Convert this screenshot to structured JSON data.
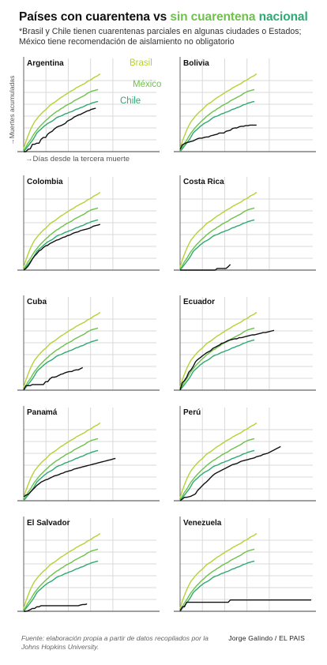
{
  "header": {
    "title_part1": "Países con cuarentena vs ",
    "title_part2": "sin cuarentena",
    "title_part3": " nacional",
    "subtitle": "*Brasil y Chile tienen cuarentenas parciales en algunas ciudades o Estados; México tiene recomendación de aislamiento no obligatorio"
  },
  "colors": {
    "brasil": "#b4d235",
    "mexico": "#6dc24b",
    "chile": "#2eaa72",
    "country": "#111111",
    "grid": "#d9d9d9",
    "axis": "#666666"
  },
  "chart_data": {
    "type": "line",
    "layout": "small-multiples",
    "xlabel": "Días desde la tercera muerte",
    "ylabel": "Muertes acumuladas",
    "grid": true,
    "reference_series": [
      {
        "name": "Brasil",
        "x": [
          0,
          1,
          2,
          3,
          4,
          5,
          6,
          7,
          8,
          9,
          10,
          11,
          12,
          13,
          14,
          15,
          16,
          17,
          18,
          19,
          20,
          21,
          22,
          23,
          24,
          25,
          26,
          27,
          28,
          29,
          30,
          31,
          32,
          33,
          34,
          35
        ],
        "values": [
          5,
          18,
          28,
          38,
          46,
          53,
          58,
          63,
          67,
          71,
          74,
          78,
          82,
          85,
          87,
          90,
          93,
          96,
          98,
          101,
          103,
          106,
          108,
          110,
          113,
          115,
          117,
          119,
          121,
          124,
          126,
          128,
          131,
          133,
          135,
          138
        ]
      },
      {
        "name": "México",
        "x": [
          0,
          1,
          2,
          3,
          4,
          5,
          6,
          7,
          8,
          9,
          10,
          11,
          12,
          13,
          14,
          15,
          16,
          17,
          18,
          19,
          20,
          21,
          22,
          23,
          24,
          25,
          26,
          27,
          28,
          29,
          30,
          31,
          32,
          33,
          34
        ],
        "values": [
          0,
          8,
          15,
          20,
          27,
          33,
          38,
          43,
          47,
          51,
          55,
          58,
          62,
          65,
          68,
          71,
          73,
          76,
          78,
          81,
          83,
          85,
          87,
          90,
          92,
          94,
          96,
          98,
          100,
          103,
          105,
          107,
          108,
          109,
          110
        ]
      },
      {
        "name": "Chile",
        "x": [
          0,
          1,
          2,
          3,
          4,
          5,
          6,
          7,
          8,
          9,
          10,
          11,
          12,
          13,
          14,
          15,
          16,
          17,
          18,
          19,
          20,
          21,
          22,
          23,
          24,
          25,
          26,
          27,
          28,
          29,
          30,
          31,
          32,
          33,
          34
        ],
        "values": [
          0,
          5,
          10,
          15,
          20,
          26,
          33,
          37,
          40,
          44,
          47,
          50,
          52,
          54,
          57,
          60,
          62,
          63,
          65,
          67,
          68,
          70,
          71,
          73,
          75,
          76,
          78,
          79,
          81,
          83,
          84,
          86,
          87,
          88,
          89
        ]
      }
    ],
    "panels": [
      {
        "country": "Argentina",
        "x": [
          0,
          1,
          2,
          3,
          4,
          5,
          6,
          7,
          8,
          9,
          10,
          11,
          12,
          13,
          14,
          15,
          16,
          17,
          18,
          19,
          20,
          21,
          22,
          23,
          24,
          25,
          26,
          27,
          28,
          29,
          30,
          31,
          32,
          33
        ],
        "values": [
          0,
          0,
          4,
          5,
          13,
          13,
          15,
          15,
          22,
          25,
          25,
          31,
          34,
          36,
          40,
          43,
          45,
          46,
          48,
          50,
          54,
          56,
          58,
          61,
          63,
          65,
          66,
          68,
          70,
          72,
          73,
          75,
          76,
          77
        ]
      },
      {
        "country": "Bolivia",
        "x": [
          0,
          1,
          2,
          3,
          4,
          5,
          6,
          7,
          8,
          9,
          10,
          11,
          12,
          13,
          14,
          15,
          16,
          17,
          18,
          19,
          20,
          21,
          22,
          23,
          24,
          25,
          26,
          27,
          28,
          29,
          30,
          31,
          32,
          33,
          34,
          35
        ],
        "values": [
          4,
          12,
          14,
          16,
          17,
          18,
          19,
          21,
          23,
          24,
          24,
          25,
          26,
          26,
          28,
          29,
          30,
          31,
          33,
          33,
          33,
          36,
          37,
          38,
          41,
          42,
          42,
          44,
          45,
          45,
          46,
          46,
          47,
          47,
          47,
          47
        ]
      },
      {
        "country": "Colombia",
        "x": [
          0,
          1,
          2,
          3,
          4,
          5,
          6,
          7,
          8,
          9,
          10,
          11,
          12,
          13,
          14,
          15,
          16,
          17,
          18,
          19,
          20,
          21,
          22,
          23,
          24,
          25,
          26,
          27,
          28,
          29,
          30,
          31,
          32,
          33,
          34,
          35
        ],
        "values": [
          0,
          3,
          7,
          13,
          20,
          25,
          29,
          34,
          36,
          40,
          43,
          44,
          47,
          49,
          51,
          53,
          54,
          56,
          58,
          59,
          61,
          62,
          64,
          66,
          67,
          68,
          70,
          71,
          72,
          73,
          74,
          76,
          78,
          79,
          80,
          81
        ]
      },
      {
        "country": "Costa Rica",
        "x": [
          0,
          1,
          2,
          3,
          4,
          5,
          6,
          7,
          8,
          9,
          10,
          11,
          12,
          13,
          14,
          15,
          16,
          17,
          18,
          19,
          20,
          21,
          22,
          23
        ],
        "values": [
          0,
          0,
          0,
          0,
          0,
          0,
          0,
          0,
          0,
          0,
          0,
          0,
          0,
          0,
          0,
          0,
          0,
          3,
          3,
          3,
          3,
          3,
          6,
          10
        ]
      },
      {
        "country": "Cuba",
        "x": [
          0,
          1,
          2,
          3,
          4,
          5,
          6,
          7,
          8,
          9,
          10,
          11,
          12,
          13,
          14,
          15,
          16,
          17,
          18,
          19,
          20,
          21,
          22,
          23,
          24,
          25,
          26,
          27
        ],
        "values": [
          0,
          8,
          8,
          8,
          10,
          10,
          10,
          10,
          10,
          10,
          15,
          15,
          20,
          23,
          23,
          24,
          26,
          28,
          29,
          31,
          32,
          33,
          33,
          35,
          36,
          36,
          38,
          40
        ]
      },
      {
        "country": "Ecuador",
        "x": [
          0,
          1,
          2,
          3,
          4,
          5,
          6,
          7,
          8,
          9,
          10,
          11,
          12,
          13,
          14,
          15,
          16,
          17,
          18,
          19,
          20,
          21,
          22,
          23,
          24,
          25,
          26,
          27,
          28,
          29,
          30,
          31,
          32,
          33,
          34,
          35,
          36,
          37,
          38,
          39,
          40,
          41,
          42,
          43
        ],
        "values": [
          0,
          13,
          17,
          23,
          32,
          36,
          42,
          50,
          54,
          57,
          60,
          63,
          66,
          68,
          70,
          74,
          76,
          78,
          80,
          83,
          84,
          86,
          88,
          89,
          90,
          91,
          91,
          93,
          93,
          94,
          95,
          96,
          97,
          98,
          98,
          99,
          100,
          101,
          102,
          102,
          103,
          104,
          105,
          106
        ]
      },
      {
        "country": "Panamá",
        "x": [
          0,
          1,
          2,
          3,
          4,
          5,
          6,
          7,
          8,
          9,
          10,
          11,
          12,
          13,
          14,
          15,
          16,
          17,
          18,
          19,
          20,
          21,
          22,
          23,
          24,
          25,
          26,
          27,
          28,
          29,
          30,
          31,
          32,
          33,
          34,
          35,
          36,
          37,
          38,
          39,
          40,
          41,
          42
        ],
        "values": [
          7,
          10,
          11,
          15,
          19,
          23,
          27,
          30,
          33,
          35,
          37,
          38,
          40,
          42,
          44,
          45,
          46,
          48,
          49,
          51,
          52,
          53,
          54,
          56,
          57,
          58,
          59,
          60,
          61,
          62,
          63,
          64,
          65,
          66,
          67,
          68,
          69,
          70,
          71,
          72,
          73,
          74,
          75
        ]
      },
      {
        "country": "Perú",
        "x": [
          0,
          1,
          2,
          3,
          4,
          5,
          6,
          7,
          8,
          9,
          10,
          11,
          12,
          13,
          14,
          15,
          16,
          17,
          18,
          19,
          20,
          21,
          22,
          23,
          24,
          25,
          26,
          27,
          28,
          29,
          30,
          31,
          32,
          33,
          34,
          35,
          36,
          37,
          38,
          39,
          40,
          41,
          42,
          43,
          44,
          45,
          46
        ],
        "values": [
          0,
          3,
          6,
          6,
          7,
          8,
          10,
          12,
          18,
          22,
          26,
          30,
          33,
          37,
          41,
          45,
          48,
          50,
          52,
          54,
          56,
          58,
          60,
          62,
          64,
          65,
          66,
          68,
          70,
          71,
          72,
          73,
          74,
          75,
          76,
          78,
          79,
          80,
          82,
          83,
          84,
          86,
          88,
          90,
          92,
          94,
          96
        ]
      },
      {
        "country": "El Salvador",
        "x": [
          0,
          1,
          2,
          3,
          4,
          5,
          6,
          7,
          8,
          9,
          10,
          11,
          12,
          13,
          14,
          15,
          16,
          17,
          18,
          19,
          20,
          21,
          22,
          23,
          24,
          25,
          26,
          27,
          28,
          29
        ],
        "values": [
          0,
          0,
          1,
          3,
          5,
          5,
          8,
          8,
          10,
          10,
          10,
          10,
          10,
          10,
          10,
          10,
          10,
          10,
          10,
          10,
          10,
          10,
          10,
          10,
          10,
          10,
          11,
          12,
          12,
          13
        ]
      },
      {
        "country": "Venezuela",
        "x": [
          0,
          1,
          2,
          3,
          4,
          5,
          6,
          7,
          8,
          9,
          10,
          11,
          12,
          13,
          14,
          15,
          16,
          17,
          18,
          19,
          20,
          21,
          22,
          23,
          24,
          25,
          26,
          27,
          28,
          29,
          30,
          31,
          32,
          33,
          34,
          35,
          36,
          37,
          38,
          39,
          40,
          41,
          42,
          43,
          44,
          45,
          46,
          47,
          48,
          49,
          50,
          51,
          52,
          53,
          54,
          55,
          56,
          57,
          58,
          59,
          60
        ],
        "values": [
          0,
          8,
          8,
          16,
          16,
          16,
          16,
          16,
          16,
          16,
          16,
          16,
          16,
          16,
          16,
          16,
          16,
          16,
          16,
          16,
          16,
          16,
          16,
          20,
          20,
          20,
          20,
          20,
          20,
          20,
          20,
          20,
          20,
          20,
          20,
          20,
          20,
          20,
          20,
          20,
          20,
          20,
          20,
          20,
          20,
          20,
          20,
          20,
          20,
          20,
          20,
          20,
          20,
          20,
          20,
          20,
          20,
          20,
          20,
          20,
          20
        ]
      }
    ]
  },
  "footer": {
    "source": "Fuente: elaboración propia a partir de datos recopilados por la Johns Hopkins University.",
    "credit": "Jorge Galindo / EL PAIS"
  }
}
